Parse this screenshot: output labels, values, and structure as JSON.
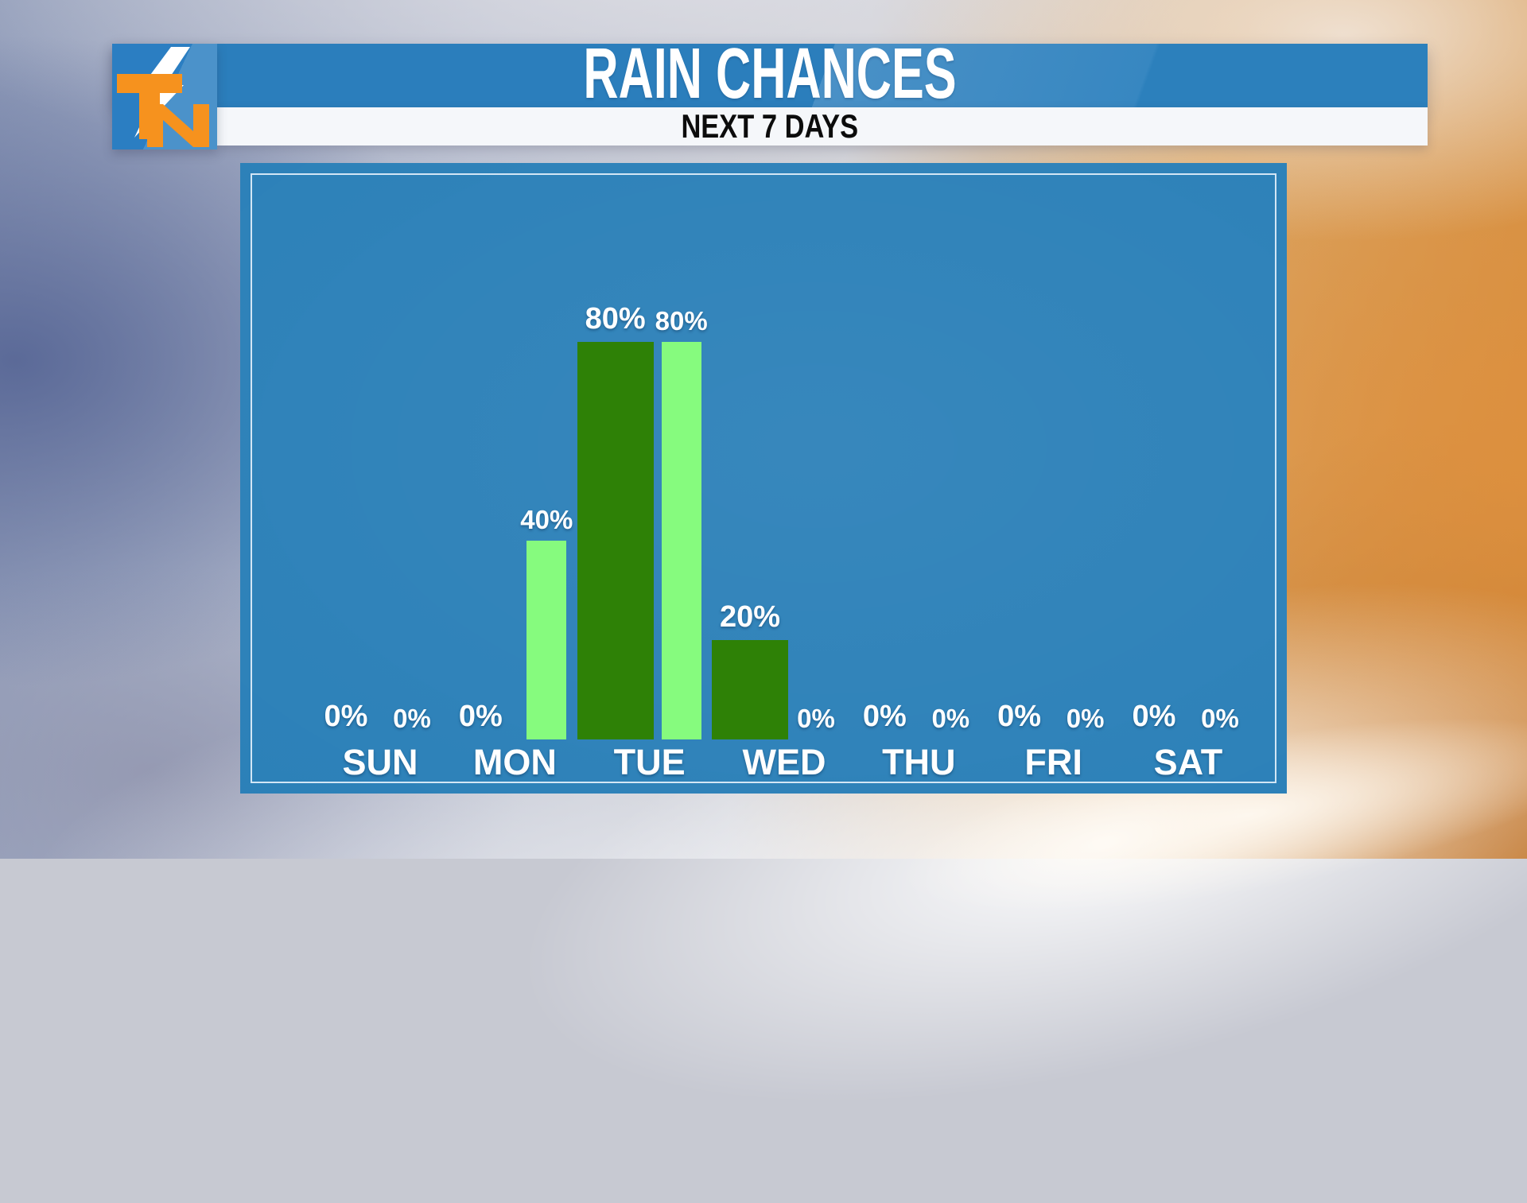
{
  "header": {
    "title": "RAIN CHANCES",
    "subtitle": "NEXT 7 DAYS",
    "logo_text": "TN"
  },
  "colors": {
    "header_blue": "#2b7ebc",
    "panel_blue": "#2b80b8",
    "logo_orange": "#f6921e",
    "dark_green": "#2e8106",
    "light_green": "#86fb7e",
    "label_white": "#ffffff",
    "subtitle_black": "#0c0c0c"
  },
  "chart_data": {
    "type": "bar",
    "title": "RAIN CHANCES",
    "subtitle": "NEXT 7 DAYS",
    "categories": [
      "SUN",
      "MON",
      "TUE",
      "WED",
      "THU",
      "FRI",
      "SAT"
    ],
    "series": [
      {
        "color": "#2e8106",
        "values": [
          0,
          0,
          80,
          20,
          0,
          0,
          0
        ]
      },
      {
        "color": "#86fb7e",
        "values": [
          0,
          40,
          80,
          0,
          0,
          0,
          0
        ]
      }
    ],
    "ylim": [
      0,
      100
    ],
    "value_suffix": "%",
    "value_labels_shown": true,
    "grid": false,
    "legend": false
  }
}
